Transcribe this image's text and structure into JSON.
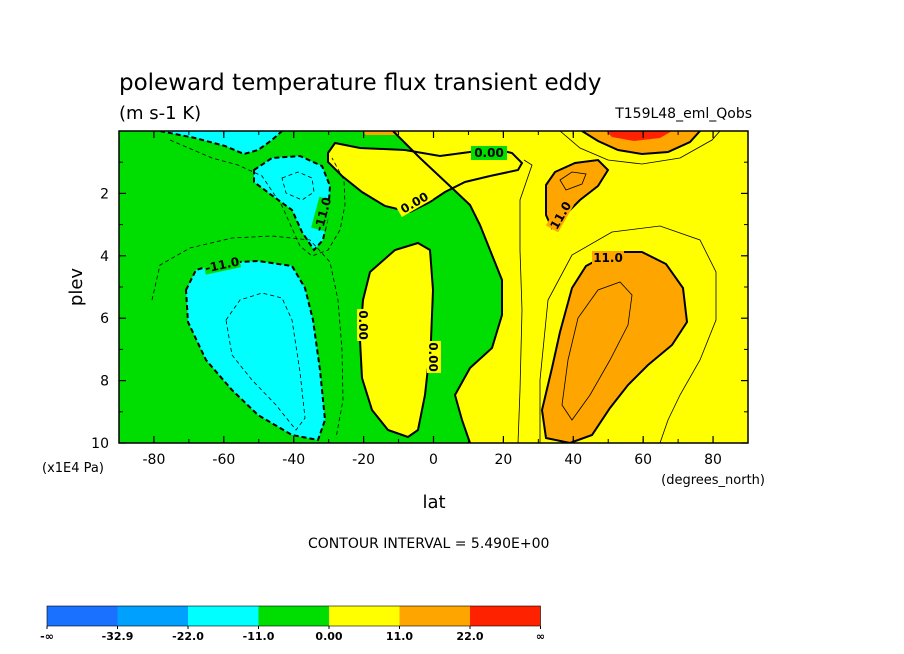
{
  "chart_data": {
    "type": "heatmap",
    "title": "poleward temperature flux transient eddy",
    "subtitle": "(m s-1 K)",
    "dataset": "T159L48_eml_Qobs",
    "xlabel": "lat",
    "x_units": "(degrees_north)",
    "ylabel": "plev",
    "y_units": "(x1E4 Pa)",
    "xlim": [
      -90,
      90
    ],
    "ylim": [
      10,
      0
    ],
    "x_ticks": [
      -80,
      -60,
      -40,
      -20,
      0,
      20,
      40,
      60,
      80
    ],
    "y_ticks": [
      2,
      4,
      6,
      8,
      10
    ],
    "contour_interval_text": "CONTOUR INTERVAL = 5.490E+00",
    "contour_labels": [
      {
        "text": "-11.0",
        "lat": -36,
        "plev": 2.4
      },
      {
        "text": "-11.0",
        "lat": -63,
        "plev": 4.3
      },
      {
        "text": "0.00",
        "lat": 16,
        "plev": 0.8
      },
      {
        "text": "0.00",
        "lat": -5,
        "plev": 2.4
      },
      {
        "text": "0.00",
        "lat": -20,
        "plev": 6.2
      },
      {
        "text": "0.00",
        "lat": 0,
        "plev": 7.2
      },
      {
        "text": "11.0",
        "lat": 36,
        "plev": 2.9
      },
      {
        "text": "11.0",
        "lat": 52,
        "plev": 4.1
      }
    ],
    "colorbar": {
      "labels": [
        "-∞",
        "-32.9",
        "-22.0",
        "-11.0",
        "0.00",
        "11.0",
        "22.0",
        "∞"
      ],
      "colors": [
        "#1a70ff",
        "#00a0ff",
        "#00ffff",
        "#00dd00",
        "#ffff00",
        "#ffa500",
        "#ff2200"
      ]
    }
  }
}
